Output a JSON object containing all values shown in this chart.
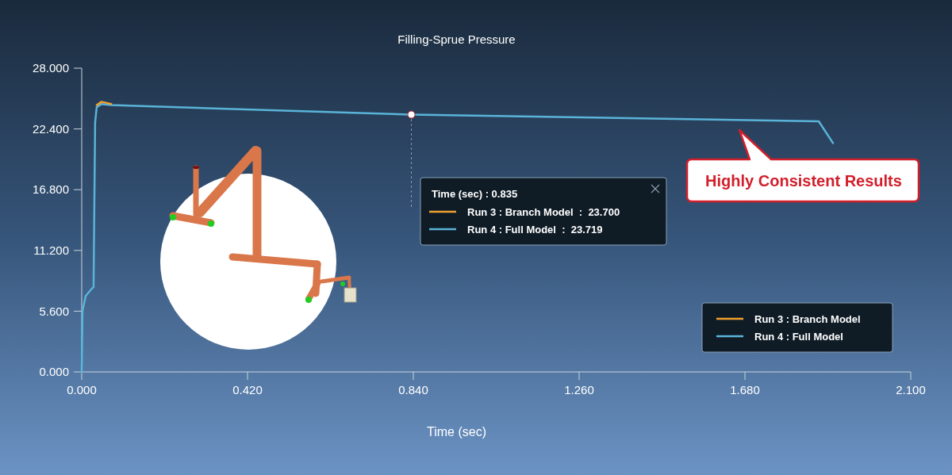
{
  "chart_data": {
    "type": "line",
    "title": "Filling-Sprue Pressure",
    "xlabel": "Time (sec)",
    "xlim": [
      0,
      2.1
    ],
    "ylim": [
      0,
      28
    ],
    "xticks": [
      {
        "value": 0,
        "label": "0.000"
      },
      {
        "value": 0.42,
        "label": "0.420"
      },
      {
        "value": 0.84,
        "label": "0.840"
      },
      {
        "value": 1.26,
        "label": "1.260"
      },
      {
        "value": 1.68,
        "label": "1.680"
      },
      {
        "value": 2.1,
        "label": "2.100"
      }
    ],
    "yticks": [
      {
        "value": 0,
        "label": "0.000"
      },
      {
        "value": 5.6,
        "label": "5.600"
      },
      {
        "value": 11.2,
        "label": "11.200"
      },
      {
        "value": 16.8,
        "label": "16.800"
      },
      {
        "value": 22.4,
        "label": "22.400"
      },
      {
        "value": 28,
        "label": "28.000"
      }
    ],
    "grid": false,
    "legend": "bottom right",
    "marker": "none",
    "line_style": "solid",
    "series": [
      {
        "name": "Run 3 : Branch Model",
        "color": "#f0a030",
        "x": [
          0.038,
          0.05,
          0.075
        ],
        "values": [
          24.6,
          24.9,
          24.7
        ]
      },
      {
        "name": "Run 4 : Full Model",
        "color": "#5ab4d8",
        "x": [
          0,
          0.002,
          0.01,
          0.026,
          0.03,
          0.034,
          0.038,
          0.05,
          0.075,
          0.835,
          1.867,
          1.903
        ],
        "values": [
          0,
          5.6,
          7,
          7.7,
          7.8,
          23,
          24.4,
          24.7,
          24.6,
          23.719,
          23.1,
          21.1
        ]
      }
    ],
    "ref_lines": [
      {
        "axis": "x",
        "value": 0.835,
        "color": "#b0b8c4",
        "line_style": "dotted"
      }
    ],
    "annotations": [
      "Time (sec) : 0.835",
      "Run 3 : Branch Model  :  23.700",
      "Run 4 : Full Model  :  23.719",
      "Highly Consistent Results"
    ]
  }
}
